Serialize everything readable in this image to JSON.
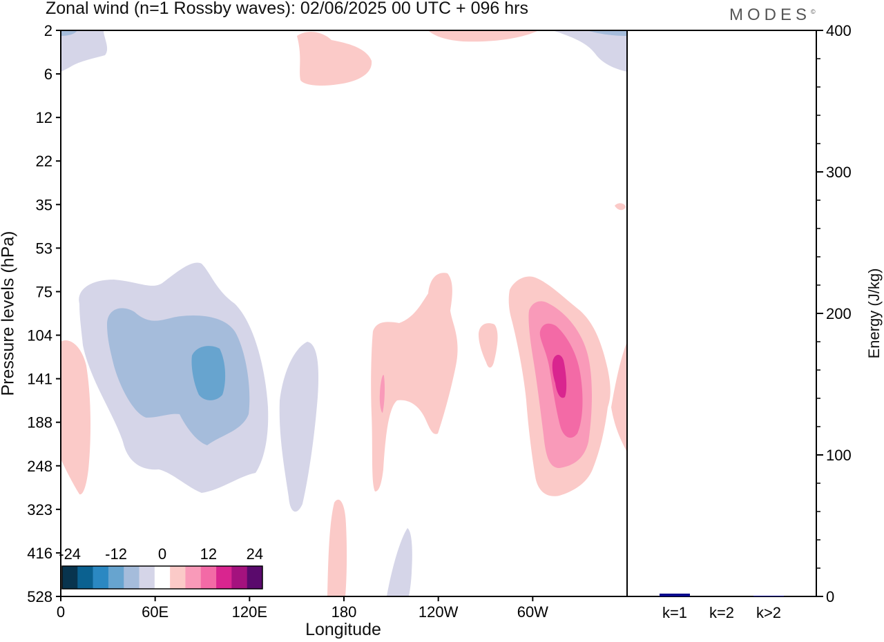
{
  "title": "Zonal wind (n=1 Rossby waves):  02/06/2025  00 UTC  + 096 hrs",
  "logo": "MODES",
  "logo_mark": "©",
  "chart_data": [
    {
      "type": "heatmap",
      "xlabel": "Longitude",
      "ylabel": "Pressure levels (hPa)",
      "x_ticks": [
        "0",
        "60E",
        "120E",
        "180",
        "120W",
        "60W"
      ],
      "x_tick_degrees": [
        0,
        60,
        120,
        180,
        240,
        300
      ],
      "xlim_degrees": [
        0,
        360
      ],
      "y_ticks": [
        "2",
        "6",
        "12",
        "22",
        "35",
        "53",
        "75",
        "104",
        "141",
        "188",
        "248",
        "323",
        "416",
        "528"
      ],
      "colorbar": {
        "labels": [
          "-24",
          "-12",
          "0",
          "12",
          "24"
        ],
        "colors": [
          "#08344e",
          "#0b6190",
          "#2b88c2",
          "#67a4cf",
          "#a5bcdb",
          "#d5d5e8",
          "#ffffff",
          "#fbcac8",
          "#f99ab9",
          "#f36aa6",
          "#d9258f",
          "#a4127e",
          "#5a0a6c"
        ]
      },
      "features": [
        {
          "kind": "negative",
          "longitude": 95,
          "level_hPa": 141,
          "max_abs_ms": 15
        },
        {
          "kind": "positive",
          "longitude": 320,
          "level_hPa": 141,
          "max_ms": 20
        },
        {
          "kind": "positive",
          "longitude": 235,
          "level_hPa": 160,
          "max_ms": 8
        },
        {
          "kind": "negative",
          "longitude": 155,
          "level_hPa": 220,
          "max_abs_ms": 5
        }
      ]
    },
    {
      "type": "bar",
      "ylabel": "Energy (J/kg)",
      "ylim": [
        0,
        400
      ],
      "y_ticks": [
        "0",
        "100",
        "200",
        "300",
        "400"
      ],
      "categories": [
        "k=1",
        "k=2",
        "k>2"
      ],
      "values": [
        2,
        0,
        0.5
      ],
      "bar_color": "#0a0a8c"
    }
  ]
}
